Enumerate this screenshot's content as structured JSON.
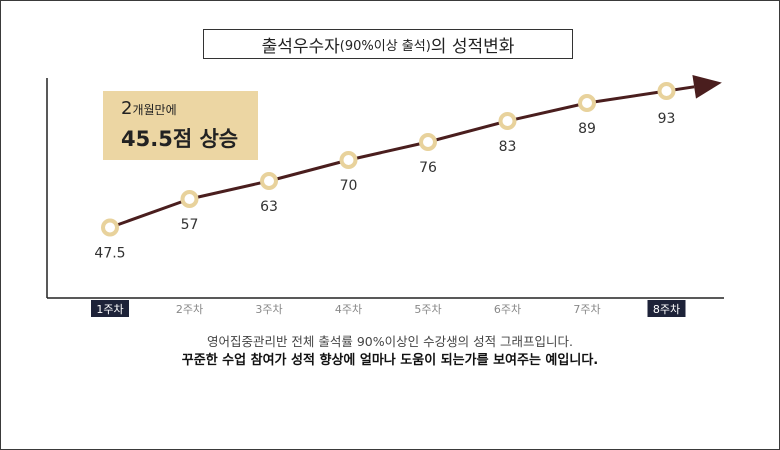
{
  "title": {
    "main": "출석우수자",
    "paren": "(90%이상 출석)",
    "tail": "의 성적변화"
  },
  "callout": {
    "num1": "2",
    "text1": "개월만에",
    "line2": "45.5점 상승"
  },
  "captions": {
    "line1": "영어집중관리반 전체 출석률 90%이상인 수강생의 성적 그래프입니다.",
    "line2": "꾸준한 수업 참여가 성적 향상에 얼마나 도움이 되는가를 보여주는 예입니다."
  },
  "colors": {
    "line": "#4a1e1e",
    "marker_ring": "#e8d29c",
    "axis": "#222222",
    "highlight_tick_bg": "#1d2238",
    "label_text": "#333333",
    "tick_text": "#888888"
  },
  "chart_data": {
    "type": "line",
    "categories": [
      "1주차",
      "2주차",
      "3주차",
      "4주차",
      "5주차",
      "6주차",
      "7주차",
      "8주차"
    ],
    "highlighted_categories": [
      "1주차",
      "8주차"
    ],
    "values": [
      47.5,
      57,
      63,
      70,
      76,
      83,
      89,
      93
    ],
    "value_labels": [
      "47.5",
      "57",
      "63",
      "70",
      "76",
      "83",
      "89",
      "93"
    ],
    "ylim": [
      20,
      110
    ],
    "arrow_end": true,
    "grid": false
  }
}
